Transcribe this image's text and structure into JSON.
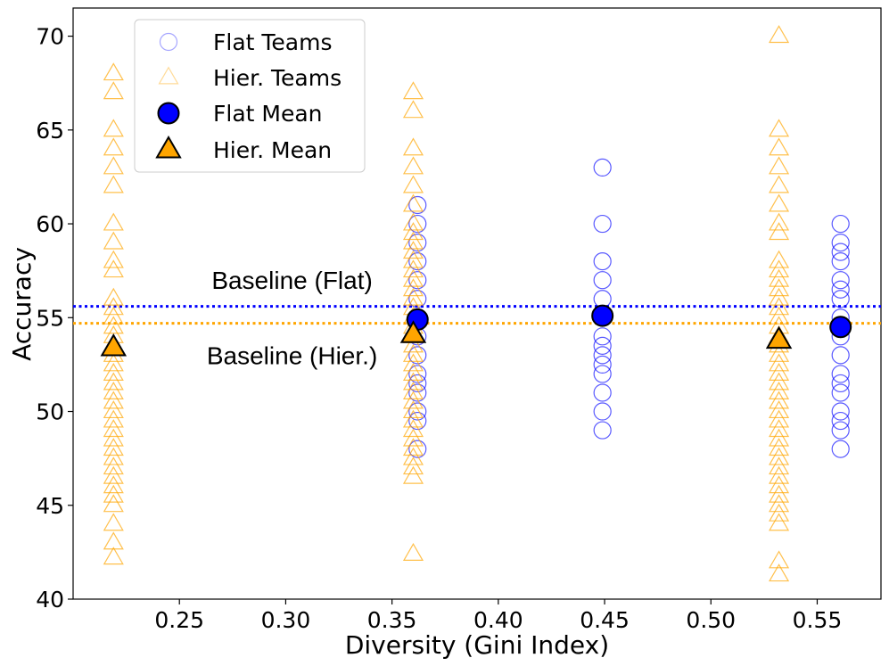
{
  "chart_data": {
    "type": "scatter",
    "xlabel": "Diversity (Gini Index)",
    "ylabel": "Accuracy",
    "xlim": [
      0.2,
      0.58
    ],
    "ylim": [
      40,
      71.5
    ],
    "x_ticks": [
      0.25,
      0.3,
      0.35,
      0.4,
      0.45,
      0.5,
      0.55
    ],
    "x_tick_labels": [
      "0.25",
      "0.30",
      "0.35",
      "0.40",
      "0.45",
      "0.50",
      "0.55"
    ],
    "y_ticks": [
      40,
      45,
      50,
      55,
      60,
      65,
      70
    ],
    "y_tick_labels": [
      "40",
      "45",
      "50",
      "55",
      "60",
      "65",
      "70"
    ],
    "grid": false,
    "legend": {
      "position": "top-left",
      "entries": [
        "Flat Teams",
        "Hier. Teams",
        "Flat Mean",
        "Hier. Mean"
      ]
    },
    "colors": {
      "flat": "#0000ff",
      "hier": "#ffa500",
      "mean_edge": "#000000"
    },
    "series": [
      {
        "name": "Flat Teams",
        "marker": "circle",
        "style": "hollow",
        "groups": [
          {
            "x": 0.362,
            "values": [
              61,
              60,
              59,
              58,
              57,
              56,
              55,
              54,
              53,
              52,
              51.5,
              51,
              50,
              49.5,
              48
            ]
          },
          {
            "x": 0.449,
            "values": [
              63,
              60,
              58,
              57,
              56,
              55,
              54,
              53.5,
              53,
              52.5,
              52,
              51,
              50,
              49
            ]
          },
          {
            "x": 0.561,
            "values": [
              60,
              59,
              58.5,
              58,
              57,
              56.5,
              56,
              55,
              54.5,
              54,
              53,
              52,
              51.5,
              51,
              50,
              49.5,
              49,
              48
            ]
          }
        ]
      },
      {
        "name": "Hier. Teams",
        "marker": "triangle",
        "style": "hollow",
        "groups": [
          {
            "x": 0.219,
            "values": [
              68,
              67,
              65,
              64,
              63,
              62,
              60,
              59,
              58,
              57.5,
              56,
              55.5,
              55,
              54.5,
              54,
              53.5,
              53,
              52.5,
              52,
              51.5,
              51,
              50.5,
              50,
              49.5,
              49,
              48.5,
              48,
              47.5,
              47,
              46.5,
              46,
              45.5,
              45,
              44,
              43,
              42.2
            ]
          },
          {
            "x": 0.36,
            "values": [
              67,
              66,
              64,
              63,
              62,
              61,
              60,
              59.5,
              59,
              58.5,
              58,
              57.5,
              57,
              56.5,
              56,
              55.5,
              55,
              54.5,
              54,
              53.5,
              53,
              52.5,
              52,
              51.5,
              51,
              50.5,
              50,
              49.5,
              49,
              48.5,
              48,
              47.5,
              47,
              46.5,
              42.4
            ]
          },
          {
            "x": 0.532,
            "values": [
              70,
              65,
              64,
              63,
              62,
              61,
              60,
              59.5,
              58,
              57.5,
              57,
              56.5,
              56,
              55.5,
              55,
              54.5,
              54,
              53.5,
              53,
              52.5,
              52,
              51.5,
              51,
              50.5,
              50,
              49.5,
              49,
              48.5,
              48,
              47.5,
              47,
              46.5,
              46,
              45.5,
              45,
              44.5,
              44,
              42,
              41.3
            ]
          }
        ]
      },
      {
        "name": "Flat Mean",
        "marker": "circle",
        "style": "filled",
        "points": [
          {
            "x": 0.362,
            "y": 54.9
          },
          {
            "x": 0.449,
            "y": 55.1
          },
          {
            "x": 0.561,
            "y": 54.5
          }
        ]
      },
      {
        "name": "Hier. Mean",
        "marker": "triangle",
        "style": "filled",
        "points": [
          {
            "x": 0.219,
            "y": 53.4
          },
          {
            "x": 0.36,
            "y": 54.1
          },
          {
            "x": 0.532,
            "y": 53.8
          }
        ]
      }
    ],
    "baselines": [
      {
        "name": "Baseline (Flat)",
        "y": 55.6,
        "color": "#0000ff",
        "style": "dotted"
      },
      {
        "name": "Baseline (Hier.)",
        "y": 54.7,
        "color": "#ffa500",
        "style": "dotted"
      }
    ],
    "annotations": [
      {
        "text": "Baseline (Flat)",
        "x": 0.303,
        "y": 57.0
      },
      {
        "text": "Baseline (Hier.)",
        "x": 0.303,
        "y": 53.0
      }
    ]
  }
}
